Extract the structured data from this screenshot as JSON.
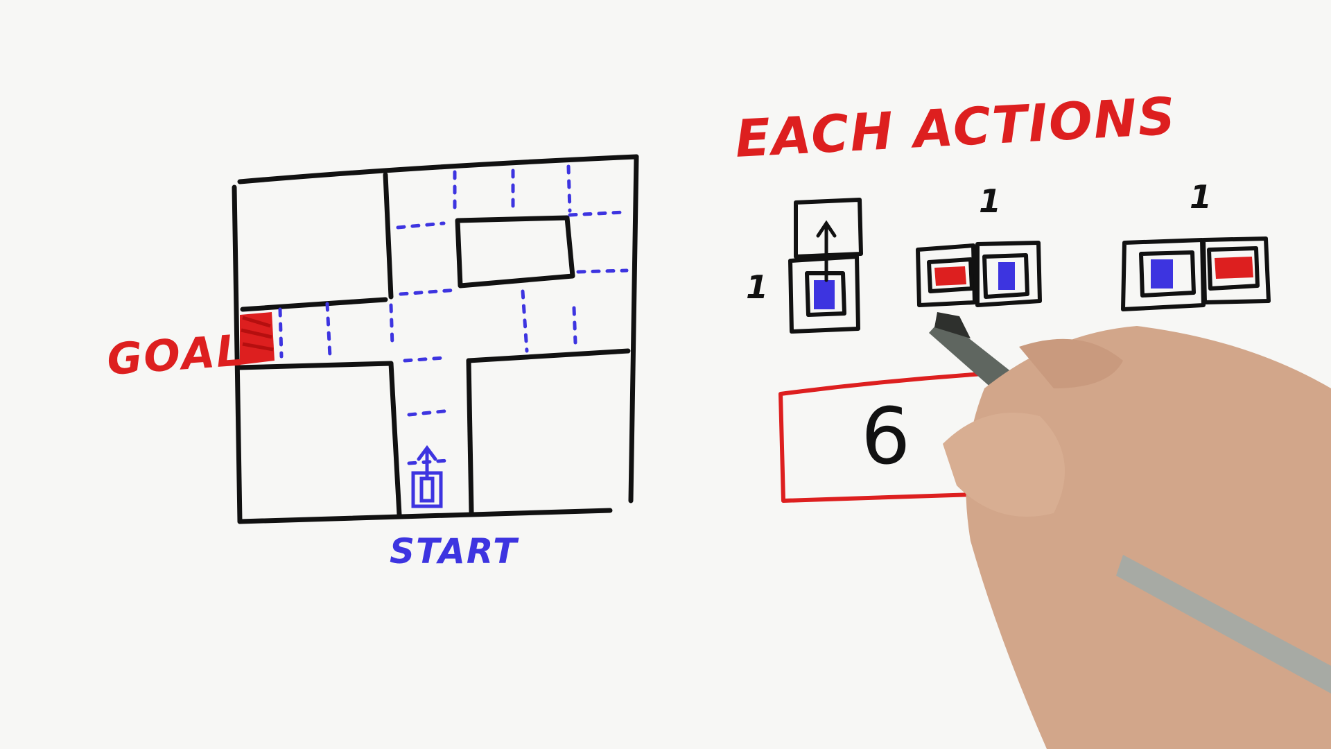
{
  "labels": {
    "goal": "GOAL",
    "start": "START",
    "each_actions": "EACH ACTIONS",
    "answer": "6",
    "action_costs": [
      "1",
      "1",
      "1"
    ]
  },
  "colors": {
    "grid_ink": "#111111",
    "goal_ink": "#dd1f1f",
    "path_ink": "#3d34e0",
    "heading_ink": "#dd1f1f",
    "answer_box_ink": "#dd1f1f"
  },
  "icons": {
    "robot_start": "robot-up-arrow-icon",
    "goal_cell": "goal-fill-icon",
    "forward_action": "move-forward-icon",
    "turn_left_action": "turn-left-icon",
    "turn_right_action": "turn-right-icon",
    "hand": "hand-with-pen-icon"
  }
}
